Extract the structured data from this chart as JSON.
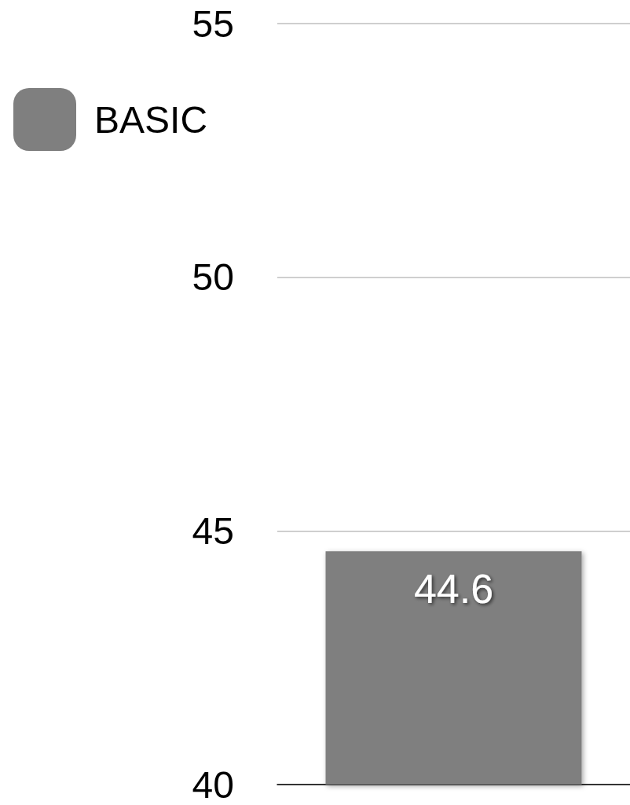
{
  "chart_data": {
    "type": "bar",
    "categories": [
      null
    ],
    "series": [
      {
        "name": "BASIC",
        "color": "#7f7f7f",
        "values": [
          44.6
        ]
      }
    ],
    "ylim": [
      40,
      55
    ],
    "yticks": [
      40,
      45,
      50,
      55
    ],
    "grid": "y",
    "legend": "top left",
    "data_labels": true
  }
}
